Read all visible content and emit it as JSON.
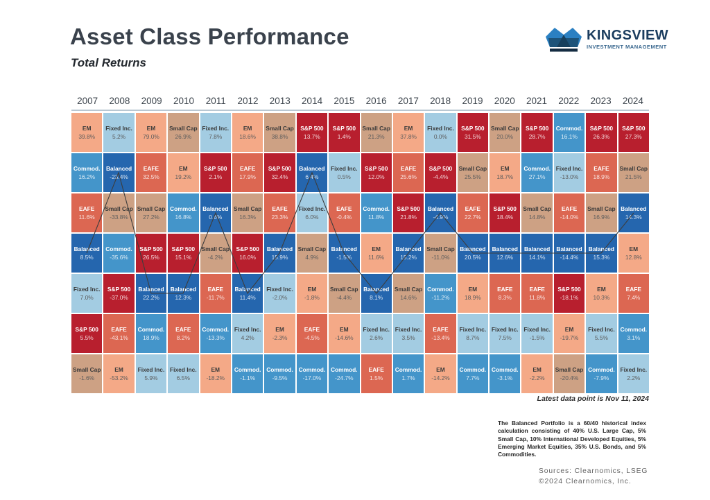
{
  "header": {
    "title": "Asset Class Performance",
    "subtitle": "Total Returns"
  },
  "logo": {
    "name": "KINGSVIEW",
    "tagline": "INVESTMENT MANAGEMENT",
    "crown_colors": {
      "light": "#2b80c2",
      "mid": "#1d5379",
      "dark": "#142c42"
    }
  },
  "palette": {
    "S&P 500": {
      "bg": "#b81f2e",
      "text": "light"
    },
    "EAFE": {
      "bg": "#dc6752",
      "text": "light"
    },
    "EM": {
      "bg": "#f4a987",
      "text": "dark"
    },
    "Small Cap": {
      "bg": "#cda habit",
      "text": "dark"
    },
    "Fixed Inc.": {
      "bg": "#a3cce2",
      "text": "dark"
    },
    "Commod.": {
      "bg": "#4495ca",
      "text": "light"
    },
    "Balanced": {
      "bg": "#2566ae",
      "text": "light"
    }
  },
  "chart_data": {
    "type": "heatmap",
    "description": "Asset class total returns ranked best-to-worst per year (quilt chart); a dark line traces the Balanced portfolio ranking across years",
    "years": [
      "2007",
      "2008",
      "2009",
      "2010",
      "2011",
      "2012",
      "2013",
      "2014",
      "2015",
      "2016",
      "2017",
      "2018",
      "2019",
      "2020",
      "2021",
      "2022",
      "2023",
      "2024"
    ],
    "line_overlay_series": "Balanced",
    "columns": [
      {
        "year": "2007",
        "ranking": [
          {
            "asset": "EM",
            "value": 39.8
          },
          {
            "asset": "Commod.",
            "value": 16.2
          },
          {
            "asset": "EAFE",
            "value": 11.6
          },
          {
            "asset": "Balanced",
            "value": 8.5
          },
          {
            "asset": "Fixed Inc.",
            "value": 7.0
          },
          {
            "asset": "S&P 500",
            "value": 5.5
          },
          {
            "asset": "Small Cap",
            "value": -1.6
          }
        ]
      },
      {
        "year": "2008",
        "ranking": [
          {
            "asset": "Fixed Inc.",
            "value": 5.2
          },
          {
            "asset": "Balanced",
            "value": -23.4
          },
          {
            "asset": "Small Cap",
            "value": -33.8
          },
          {
            "asset": "Commod.",
            "value": -35.6
          },
          {
            "asset": "S&P 500",
            "value": -37.0
          },
          {
            "asset": "EAFE",
            "value": -43.1
          },
          {
            "asset": "EM",
            "value": -53.2
          }
        ]
      },
      {
        "year": "2009",
        "ranking": [
          {
            "asset": "EM",
            "value": 79.0
          },
          {
            "asset": "EAFE",
            "value": 32.5
          },
          {
            "asset": "Small Cap",
            "value": 27.2
          },
          {
            "asset": "S&P 500",
            "value": 26.5
          },
          {
            "asset": "Balanced",
            "value": 22.2
          },
          {
            "asset": "Commod.",
            "value": 18.9
          },
          {
            "asset": "Fixed Inc.",
            "value": 5.9
          }
        ]
      },
      {
        "year": "2010",
        "ranking": [
          {
            "asset": "Small Cap",
            "value": 26.9
          },
          {
            "asset": "EM",
            "value": 19.2
          },
          {
            "asset": "Commod.",
            "value": 16.8
          },
          {
            "asset": "S&P 500",
            "value": 15.1
          },
          {
            "asset": "Balanced",
            "value": 12.3
          },
          {
            "asset": "EAFE",
            "value": 8.2
          },
          {
            "asset": "Fixed Inc.",
            "value": 6.5
          }
        ]
      },
      {
        "year": "2011",
        "ranking": [
          {
            "asset": "Fixed Inc.",
            "value": 7.8
          },
          {
            "asset": "S&P 500",
            "value": 2.1
          },
          {
            "asset": "Balanced",
            "value": 0.6
          },
          {
            "asset": "Small Cap",
            "value": -4.2
          },
          {
            "asset": "EAFE",
            "value": -11.7
          },
          {
            "asset": "Commod.",
            "value": -13.3
          },
          {
            "asset": "EM",
            "value": -18.2
          }
        ]
      },
      {
        "year": "2012",
        "ranking": [
          {
            "asset": "EM",
            "value": 18.6
          },
          {
            "asset": "EAFE",
            "value": 17.9
          },
          {
            "asset": "Small Cap",
            "value": 16.3
          },
          {
            "asset": "S&P 500",
            "value": 16.0
          },
          {
            "asset": "Balanced",
            "value": 11.4
          },
          {
            "asset": "Fixed Inc.",
            "value": 4.2
          },
          {
            "asset": "Commod.",
            "value": -1.1
          }
        ]
      },
      {
        "year": "2013",
        "ranking": [
          {
            "asset": "Small Cap",
            "value": 38.8
          },
          {
            "asset": "S&P 500",
            "value": 32.4
          },
          {
            "asset": "EAFE",
            "value": 23.3
          },
          {
            "asset": "Balanced",
            "value": 15.9
          },
          {
            "asset": "Fixed Inc.",
            "value": -2.0
          },
          {
            "asset": "EM",
            "value": -2.3
          },
          {
            "asset": "Commod.",
            "value": -9.5
          }
        ]
      },
      {
        "year": "2014",
        "ranking": [
          {
            "asset": "S&P 500",
            "value": 13.7
          },
          {
            "asset": "Balanced",
            "value": 6.4
          },
          {
            "asset": "Fixed Inc.",
            "value": 6.0
          },
          {
            "asset": "Small Cap",
            "value": 4.9
          },
          {
            "asset": "EM",
            "value": -1.8
          },
          {
            "asset": "EAFE",
            "value": -4.5
          },
          {
            "asset": "Commod.",
            "value": -17.0
          }
        ]
      },
      {
        "year": "2015",
        "ranking": [
          {
            "asset": "S&P 500",
            "value": 1.4
          },
          {
            "asset": "Fixed Inc.",
            "value": 0.5
          },
          {
            "asset": "EAFE",
            "value": -0.4
          },
          {
            "asset": "Balanced",
            "value": -1.5
          },
          {
            "asset": "Small Cap",
            "value": -4.4
          },
          {
            "asset": "EM",
            "value": -14.6
          },
          {
            "asset": "Commod.",
            "value": -24.7
          }
        ]
      },
      {
        "year": "2016",
        "ranking": [
          {
            "asset": "Small Cap",
            "value": 21.3
          },
          {
            "asset": "S&P 500",
            "value": 12.0
          },
          {
            "asset": "Commod.",
            "value": 11.8
          },
          {
            "asset": "EM",
            "value": 11.6
          },
          {
            "asset": "Balanced",
            "value": 8.1
          },
          {
            "asset": "Fixed Inc.",
            "value": 2.6
          },
          {
            "asset": "EAFE",
            "value": 1.5
          }
        ]
      },
      {
        "year": "2017",
        "ranking": [
          {
            "asset": "EM",
            "value": 37.8
          },
          {
            "asset": "EAFE",
            "value": 25.6
          },
          {
            "asset": "S&P 500",
            "value": 21.8
          },
          {
            "asset": "Balanced",
            "value": 15.2
          },
          {
            "asset": "Small Cap",
            "value": 14.6
          },
          {
            "asset": "Fixed Inc.",
            "value": 3.5
          },
          {
            "asset": "Commod.",
            "value": 1.7
          }
        ]
      },
      {
        "year": "2018",
        "ranking": [
          {
            "asset": "Fixed Inc.",
            "value": 0.0
          },
          {
            "asset": "S&P 500",
            "value": -4.4
          },
          {
            "asset": "Balanced",
            "value": -4.9
          },
          {
            "asset": "Small Cap",
            "value": -11.0
          },
          {
            "asset": "Commod.",
            "value": -11.2
          },
          {
            "asset": "EAFE",
            "value": -13.4
          },
          {
            "asset": "EM",
            "value": -14.2
          }
        ]
      },
      {
        "year": "2019",
        "ranking": [
          {
            "asset": "S&P 500",
            "value": 31.5
          },
          {
            "asset": "Small Cap",
            "value": 25.5
          },
          {
            "asset": "EAFE",
            "value": 22.7
          },
          {
            "asset": "Balanced",
            "value": 20.5
          },
          {
            "asset": "EM",
            "value": 18.9
          },
          {
            "asset": "Fixed Inc.",
            "value": 8.7
          },
          {
            "asset": "Commod.",
            "value": 7.7
          }
        ]
      },
      {
        "year": "2020",
        "ranking": [
          {
            "asset": "Small Cap",
            "value": 20.0
          },
          {
            "asset": "EM",
            "value": 18.7
          },
          {
            "asset": "S&P 500",
            "value": 18.4
          },
          {
            "asset": "Balanced",
            "value": 12.6
          },
          {
            "asset": "EAFE",
            "value": 8.3
          },
          {
            "asset": "Fixed Inc.",
            "value": 7.5
          },
          {
            "asset": "Commod.",
            "value": -3.1
          }
        ]
      },
      {
        "year": "2021",
        "ranking": [
          {
            "asset": "S&P 500",
            "value": 28.7
          },
          {
            "asset": "Commod.",
            "value": 27.1
          },
          {
            "asset": "Small Cap",
            "value": 14.8
          },
          {
            "asset": "Balanced",
            "value": 14.1
          },
          {
            "asset": "EAFE",
            "value": 11.8
          },
          {
            "asset": "Fixed Inc.",
            "value": -1.5
          },
          {
            "asset": "EM",
            "value": -2.2
          }
        ]
      },
      {
        "year": "2022",
        "ranking": [
          {
            "asset": "Commod.",
            "value": 16.1
          },
          {
            "asset": "Fixed Inc.",
            "value": -13.0
          },
          {
            "asset": "EAFE",
            "value": -14.0
          },
          {
            "asset": "Balanced",
            "value": -14.4
          },
          {
            "asset": "S&P 500",
            "value": -18.1
          },
          {
            "asset": "EM",
            "value": -19.7
          },
          {
            "asset": "Small Cap",
            "value": -20.4
          }
        ]
      },
      {
        "year": "2023",
        "ranking": [
          {
            "asset": "S&P 500",
            "value": 26.3
          },
          {
            "asset": "EAFE",
            "value": 18.9
          },
          {
            "asset": "Small Cap",
            "value": 16.9
          },
          {
            "asset": "Balanced",
            "value": 15.3
          },
          {
            "asset": "EM",
            "value": 10.3
          },
          {
            "asset": "Fixed Inc.",
            "value": 5.5
          },
          {
            "asset": "Commod.",
            "value": -7.9
          }
        ]
      },
      {
        "year": "2024",
        "ranking": [
          {
            "asset": "S&P 500",
            "value": 27.3
          },
          {
            "asset": "Small Cap",
            "value": 21.5
          },
          {
            "asset": "Balanced",
            "value": 14.3
          },
          {
            "asset": "EM",
            "value": 12.8
          },
          {
            "asset": "EAFE",
            "value": 7.4
          },
          {
            "asset": "Commod.",
            "value": 3.1
          },
          {
            "asset": "Fixed Inc.",
            "value": 2.2
          }
        ]
      }
    ]
  },
  "footer": {
    "latest": "Latest data point is Nov 11, 2024",
    "footnote": "The Balanced Portfolio is a 60/40 historical index calculation consisting of 40% U.S. Large Cap, 5% Small Cap, 10% International Developed Equities, 5% Emerging Market Equities, 35% U.S. Bonds, and 5% Commodities.",
    "sources_line1": "Sources: Clearnomics, LSEG",
    "sources_line2": "©2024 Clearnomics, Inc."
  }
}
